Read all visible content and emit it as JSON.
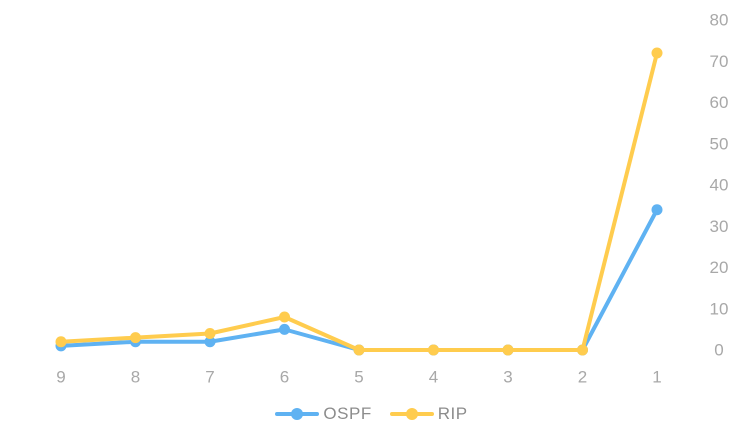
{
  "chart_data": {
    "type": "line",
    "title": "",
    "xlabel": "",
    "ylabel": "",
    "categories": [
      "9",
      "8",
      "7",
      "6",
      "5",
      "4",
      "3",
      "2",
      "1"
    ],
    "series": [
      {
        "name": "OSPF",
        "color": "#5fb2f2",
        "values": [
          1,
          2,
          2,
          5,
          0,
          0,
          0,
          0,
          34
        ]
      },
      {
        "name": "RIP",
        "color": "#ffcc4e",
        "values": [
          2,
          3,
          4,
          8,
          0,
          0,
          0,
          0,
          72
        ]
      }
    ],
    "y_axis": {
      "side": "right",
      "min": 0,
      "max": 80,
      "tick_step": 10,
      "ticks": [
        0,
        10,
        20,
        30,
        40,
        50,
        60,
        70,
        80
      ]
    },
    "x_axis": {
      "side": "bottom",
      "reversed_labels": true
    },
    "grid": false,
    "axis_lines": false,
    "legend_position": "bottom-center",
    "marker": "circle"
  },
  "styles": {
    "background": "#ffffff",
    "axis_label_color": "#a8a8a8",
    "legend_text_color": "#8c8c8c",
    "ospf_color": "#5fb2f2",
    "rip_color": "#ffcc4e"
  }
}
